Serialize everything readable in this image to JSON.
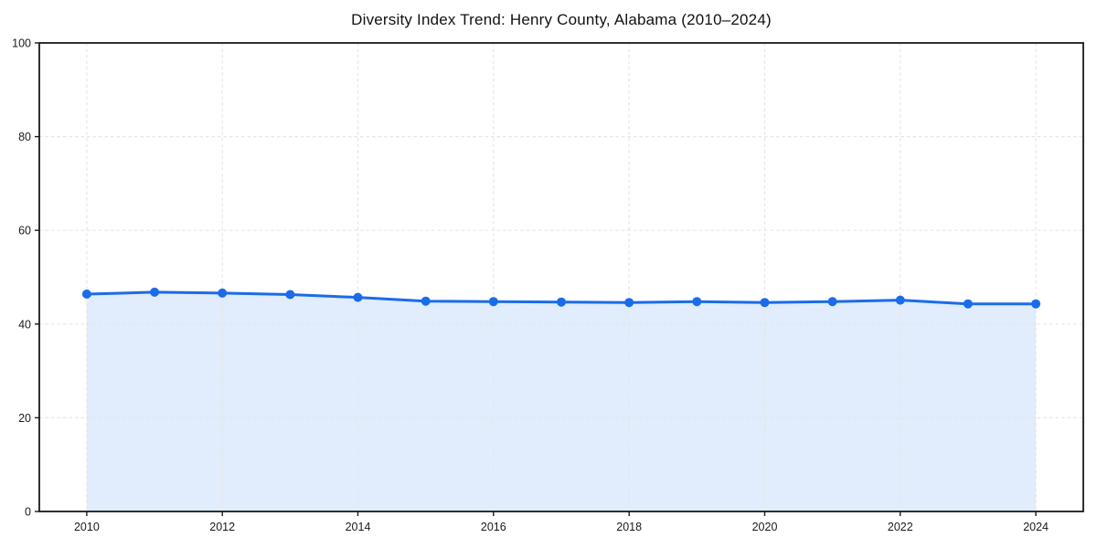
{
  "chart_data": {
    "type": "area",
    "title": "Diversity Index Trend: Henry County, Alabama (2010–2024)",
    "xlabel": "",
    "ylabel": "",
    "x": [
      2010,
      2011,
      2012,
      2013,
      2014,
      2015,
      2016,
      2017,
      2018,
      2019,
      2020,
      2021,
      2022,
      2023,
      2024
    ],
    "values": [
      46.4,
      46.8,
      46.6,
      46.3,
      45.7,
      44.9,
      44.8,
      44.7,
      44.6,
      44.8,
      44.6,
      44.8,
      45.1,
      44.3,
      44.3
    ],
    "series_name": "Diversity Index",
    "xlim": [
      2009.3,
      2024.7
    ],
    "ylim": [
      0,
      100
    ],
    "xticks": [
      2010,
      2012,
      2014,
      2016,
      2018,
      2020,
      2022,
      2024
    ],
    "yticks": [
      0,
      20,
      40,
      60,
      80,
      100
    ],
    "grid": true,
    "grid_style": "dashed",
    "legend": "none",
    "colors": {
      "line": "#1a6ce8",
      "marker": "#1a6ce8",
      "fill": "rgba(26,108,232,0.13)",
      "grid": "#e6e6e6",
      "spine": "#1a1a1a",
      "tick_label": "#1a1a1a",
      "background": "#ffffff"
    }
  }
}
